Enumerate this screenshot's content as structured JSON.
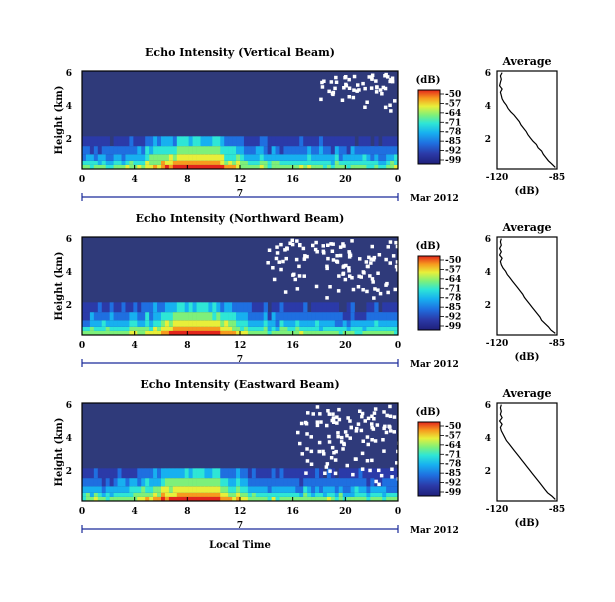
{
  "chart_data": [
    {
      "type": "heatmap",
      "title": "Echo Intensity (Vertical Beam)",
      "ylabel": "Height (km)",
      "yticks": [
        "2",
        "4",
        "6"
      ],
      "ylim": [
        0,
        6
      ],
      "xlim": [
        0,
        24
      ],
      "xticks": [
        "0",
        "4",
        "8",
        "12",
        "16",
        "20",
        "0"
      ],
      "date_label": "7",
      "month_label": "Mar 2012",
      "colorbar": {
        "unit": "(dB)",
        "ticks": [
          "-50",
          "-57",
          "-64",
          "-71",
          "-78",
          "-85",
          "-92",
          "-99"
        ]
      },
      "white_pixel_patches": "sparse dropout above about 3.5 km between 18 and 24 LT",
      "profile": {
        "title": "Average",
        "xlabel": "(dB)",
        "xticks": [
          "-120",
          "-85"
        ],
        "yticks": [
          "2",
          "4",
          "6"
        ],
        "xlim": [
          -120,
          -85
        ],
        "ylim": [
          0,
          6
        ],
        "x": [
          -86.0,
          -88.0,
          -90.0,
          -91.5,
          -93.0,
          -94.0,
          -96.0,
          -97.0,
          -99.0,
          -100.5,
          -102.0,
          -103.0,
          -104.5,
          -106.0,
          -107.0,
          -108.5,
          -110.0,
          -112.0,
          -113.5,
          -114.5,
          -116.0,
          -117.0,
          -117.5,
          -118.0,
          -117.0,
          -118.5,
          -118.0,
          -117.5,
          -118.0,
          -117.0
        ],
        "y": [
          0.1,
          0.3,
          0.5,
          0.7,
          0.9,
          1.1,
          1.3,
          1.5,
          1.7,
          1.9,
          2.1,
          2.3,
          2.5,
          2.7,
          2.9,
          3.1,
          3.3,
          3.5,
          3.7,
          3.9,
          4.1,
          4.3,
          4.5,
          4.7,
          4.9,
          5.1,
          5.3,
          5.5,
          5.7,
          5.9
        ]
      }
    },
    {
      "type": "heatmap",
      "title": "Echo Intensity (Northward Beam)",
      "ylabel": "Height (km)",
      "yticks": [
        "2",
        "4",
        "6"
      ],
      "ylim": [
        0,
        6
      ],
      "xlim": [
        0,
        24
      ],
      "xticks": [
        "0",
        "4",
        "8",
        "12",
        "16",
        "20",
        "0"
      ],
      "date_label": "7",
      "month_label": "Mar 2012",
      "colorbar": {
        "unit": "(dB)",
        "ticks": [
          "-50",
          "-57",
          "-64",
          "-71",
          "-78",
          "-85",
          "-92",
          "-99"
        ]
      },
      "white_pixel_patches": "dropout above about 2 km between 14 and 24 LT",
      "profile": {
        "title": "Average",
        "xlabel": "(dB)",
        "xticks": [
          "-120",
          "-85"
        ],
        "yticks": [
          "2",
          "4",
          "6"
        ],
        "xlim": [
          -120,
          -85
        ],
        "ylim": [
          0,
          6
        ],
        "x": [
          -86.0,
          -88.5,
          -90.0,
          -92.0,
          -94.0,
          -95.0,
          -96.5,
          -98.0,
          -99.5,
          -101.0,
          -102.5,
          -104.0,
          -105.0,
          -106.5,
          -108.0,
          -109.5,
          -111.0,
          -112.5,
          -114.0,
          -115.0,
          -116.5,
          -117.5,
          -118.0,
          -117.0,
          -118.5,
          -117.5,
          -118.5,
          -117.5,
          -118.0,
          -117.5
        ],
        "y": [
          0.1,
          0.3,
          0.5,
          0.7,
          0.9,
          1.1,
          1.3,
          1.5,
          1.7,
          1.9,
          2.1,
          2.3,
          2.5,
          2.7,
          2.9,
          3.1,
          3.3,
          3.5,
          3.7,
          3.9,
          4.1,
          4.3,
          4.5,
          4.7,
          4.9,
          5.1,
          5.3,
          5.5,
          5.7,
          5.9
        ]
      }
    },
    {
      "type": "heatmap",
      "title": "Echo Intensity (Eastward Beam)",
      "ylabel": "Height (km)",
      "yticks": [
        "2",
        "4",
        "6"
      ],
      "ylim": [
        0,
        6
      ],
      "xlim": [
        0,
        24
      ],
      "xticks": [
        "0",
        "4",
        "8",
        "12",
        "16",
        "20",
        "0"
      ],
      "date_label": "7",
      "month_label": "Mar 2012",
      "xlabel": "Local Time",
      "colorbar": {
        "unit": "(dB)",
        "ticks": [
          "-50",
          "-57",
          "-64",
          "-71",
          "-78",
          "-85",
          "-92",
          "-99"
        ]
      },
      "white_pixel_patches": "dropout above about 1 km between 16 and 24 LT",
      "profile": {
        "title": "Average",
        "xlabel": "(dB)",
        "xticks": [
          "-120",
          "-85"
        ],
        "yticks": [
          "2",
          "4",
          "6"
        ],
        "xlim": [
          -120,
          -85
        ],
        "ylim": [
          0,
          6
        ],
        "x": [
          -86.0,
          -88.0,
          -90.5,
          -92.0,
          -93.5,
          -95.0,
          -96.5,
          -98.0,
          -99.5,
          -101.0,
          -102.5,
          -104.0,
          -105.5,
          -107.0,
          -108.5,
          -110.0,
          -111.5,
          -113.0,
          -114.5,
          -115.5,
          -116.5,
          -117.5,
          -118.0,
          -117.0,
          -118.5,
          -117.0,
          -118.0,
          -117.5,
          -118.0,
          -117.5
        ],
        "y": [
          0.1,
          0.3,
          0.5,
          0.7,
          0.9,
          1.1,
          1.3,
          1.5,
          1.7,
          1.9,
          2.1,
          2.3,
          2.5,
          2.7,
          2.9,
          3.1,
          3.3,
          3.5,
          3.7,
          3.9,
          4.1,
          4.3,
          4.5,
          4.7,
          4.9,
          5.1,
          5.3,
          5.5,
          5.7,
          5.9
        ]
      }
    }
  ],
  "colors": {
    "background_field": "#2f3a7a",
    "colormap": [
      "#1f1f7a",
      "#2b3aa8",
      "#1f6fe0",
      "#17b0f0",
      "#2ee6d6",
      "#7ef07a",
      "#e8ef3a",
      "#f79a1e",
      "#e3261c"
    ],
    "dropout": "#ffffff",
    "axis": "#000000",
    "date_axis": "#1b2a9a"
  }
}
